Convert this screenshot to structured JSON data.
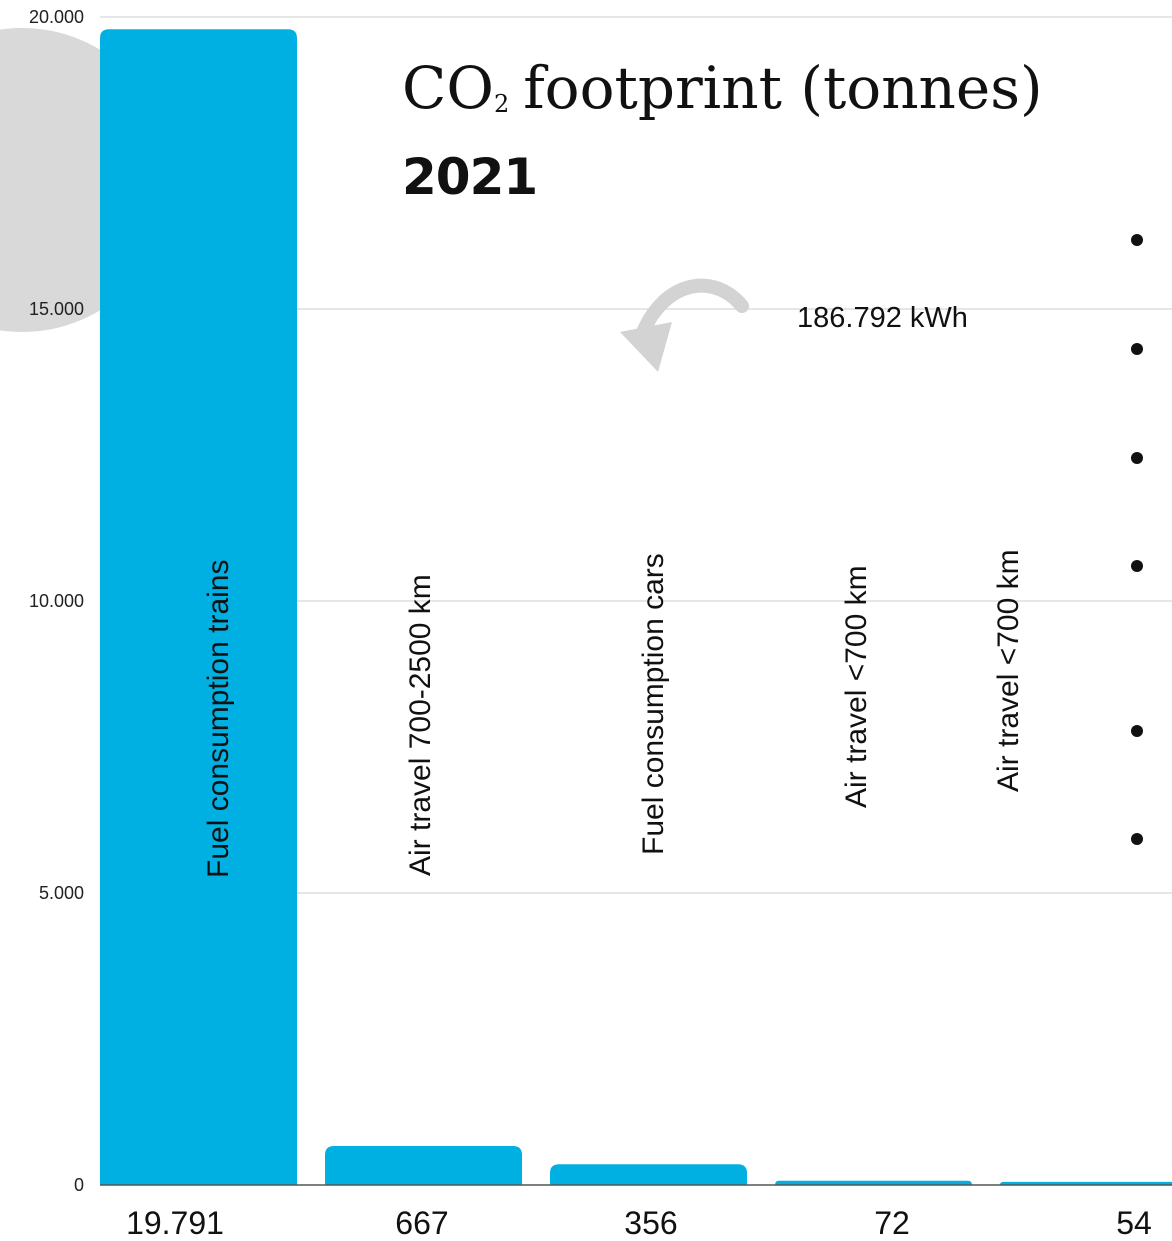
{
  "title": {
    "line1_main": "CO",
    "line1_sub": "2",
    "line1_rest": "footprint (tonnes)",
    "year": "2021"
  },
  "annotation": "186.792 kWh",
  "colors": {
    "bar": "#00b0e3",
    "gridline": "#cccccc",
    "axis": "#555555",
    "decor_circle": "#d9d9d9",
    "arrow": "#d3d3d3",
    "text": "#111111"
  },
  "chart_data": {
    "type": "bar",
    "categories": [
      "Fuel consumption trains",
      "Air travel 700-2500 km",
      "Fuel consumption cars",
      "Air travel <700 km",
      "Air travel <700 km"
    ],
    "values": [
      19791,
      667,
      356,
      72,
      54
    ],
    "value_labels": [
      "19.791",
      "667",
      "356",
      "72",
      "54"
    ],
    "y_ticks": [
      0,
      5000,
      10000,
      15000,
      20000
    ],
    "y_tick_labels": [
      "0",
      "5.000",
      "10.000",
      "15.000",
      "20.000"
    ],
    "ylim": [
      0,
      20000
    ],
    "grid": true,
    "title": "CO2 footprint (tonnes) 2021",
    "xlabel": "",
    "ylabel": ""
  }
}
